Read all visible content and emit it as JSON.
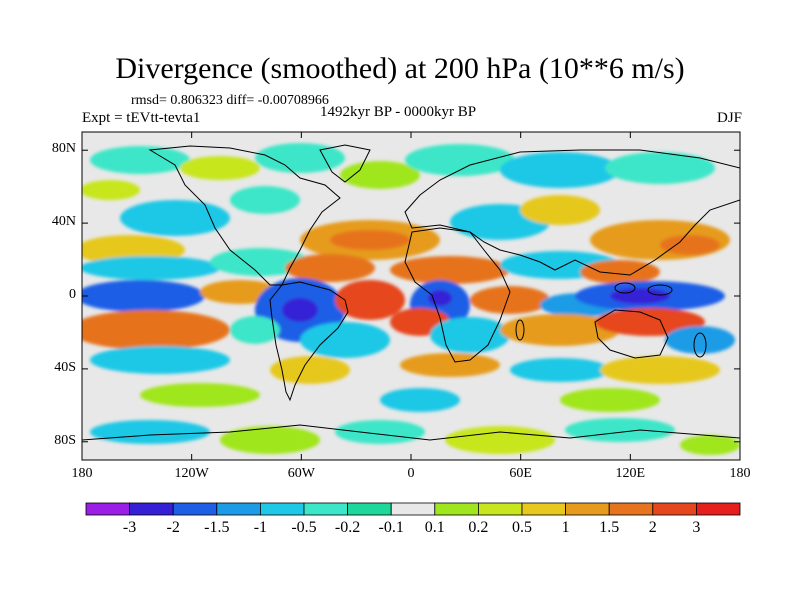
{
  "title": "Divergence (smoothed) at 200 hPa (10**6 m/s)",
  "stats": "rmsd= 0.806323 diff= -0.00708966",
  "experiment": "Expt = tEVtt-tevta1",
  "period": "1492kyr BP - 0000kyr BP",
  "season": "DJF",
  "axes": {
    "lat_ticks": [
      {
        "label": "80N",
        "lat": 80
      },
      {
        "label": "40N",
        "lat": 40
      },
      {
        "label": "0",
        "lat": 0
      },
      {
        "label": "40S",
        "lat": -40
      },
      {
        "label": "80S",
        "lat": -80
      }
    ],
    "lon_ticks": [
      {
        "label": "180",
        "lon": -180
      },
      {
        "label": "120W",
        "lon": -120
      },
      {
        "label": "60W",
        "lon": -60
      },
      {
        "label": "0",
        "lon": 0
      },
      {
        "label": "60E",
        "lon": 60
      },
      {
        "label": "120E",
        "lon": 120
      },
      {
        "label": "180",
        "lon": 180
      }
    ]
  },
  "colorbar": {
    "colors": [
      "#9b1ee6",
      "#3520d6",
      "#1e5fe6",
      "#1e9be6",
      "#1ec8e6",
      "#3ce6c8",
      "#1ed79b",
      "#e8e8e8",
      "#a0e61e",
      "#c8e61e",
      "#e6c81e",
      "#e69b1e",
      "#e6731e",
      "#e6461e",
      "#e61e1e"
    ],
    "labels": [
      "-3",
      "-2",
      "-1.5",
      "-1",
      "-0.5",
      "-0.2",
      "-0.1",
      "0.1",
      "0.2",
      "0.5",
      "1",
      "1.5",
      "2",
      "3"
    ]
  }
}
